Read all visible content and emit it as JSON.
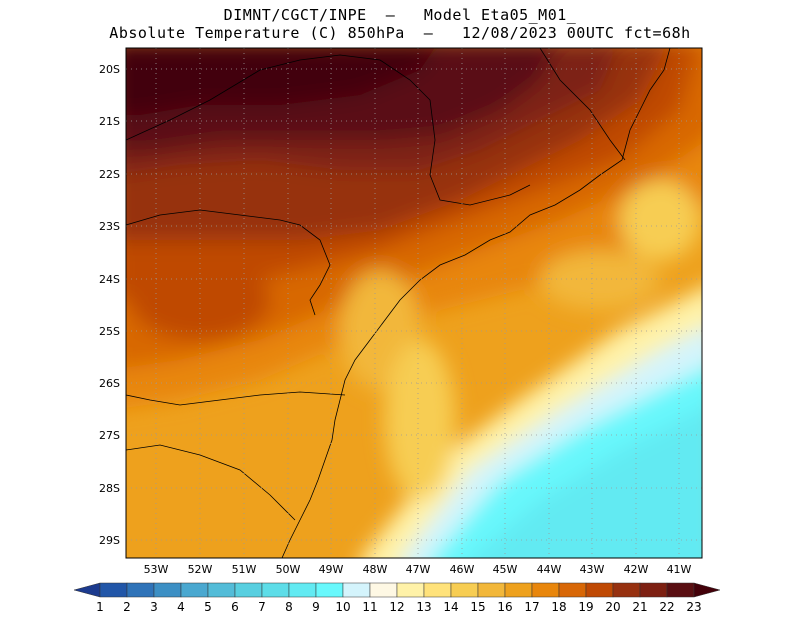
{
  "header": {
    "title_line1": "DIMNT/CGCT/INPE  –   Model Eta05_M01_",
    "title_line2": "Absolute Temperature (C) 850hPa  –   12/08/2023 00UTC fct=68h"
  },
  "map": {
    "lat_labels": [
      "20S",
      "21S",
      "22S",
      "23S",
      "24S",
      "25S",
      "26S",
      "27S",
      "28S",
      "29S"
    ],
    "lon_labels": [
      "53W",
      "52W",
      "51W",
      "50W",
      "49W",
      "48W",
      "47W",
      "46W",
      "45W",
      "44W",
      "43W",
      "42W",
      "41W"
    ]
  },
  "colorbar": {
    "labels": [
      "1",
      "2",
      "3",
      "4",
      "5",
      "6",
      "7",
      "8",
      "9",
      "10",
      "11",
      "12",
      "13",
      "14",
      "15",
      "16",
      "17",
      "18",
      "19",
      "20",
      "21",
      "22",
      "23"
    ],
    "colors": [
      "#1c3a8e",
      "#2156a8",
      "#2f73b8",
      "#3c8fc4",
      "#4aa8d0",
      "#53bcd8",
      "#58cfe0",
      "#5ddde8",
      "#62eaf2",
      "#68f8fc",
      "#d4f4fc",
      "#fef8e4",
      "#fff2a8",
      "#ffe27a",
      "#f7cd52",
      "#f2b73a",
      "#eea11d",
      "#e8860c",
      "#d86706",
      "#bf4904",
      "#973110",
      "#7d2012",
      "#5a0f12",
      "#430009"
    ]
  }
}
